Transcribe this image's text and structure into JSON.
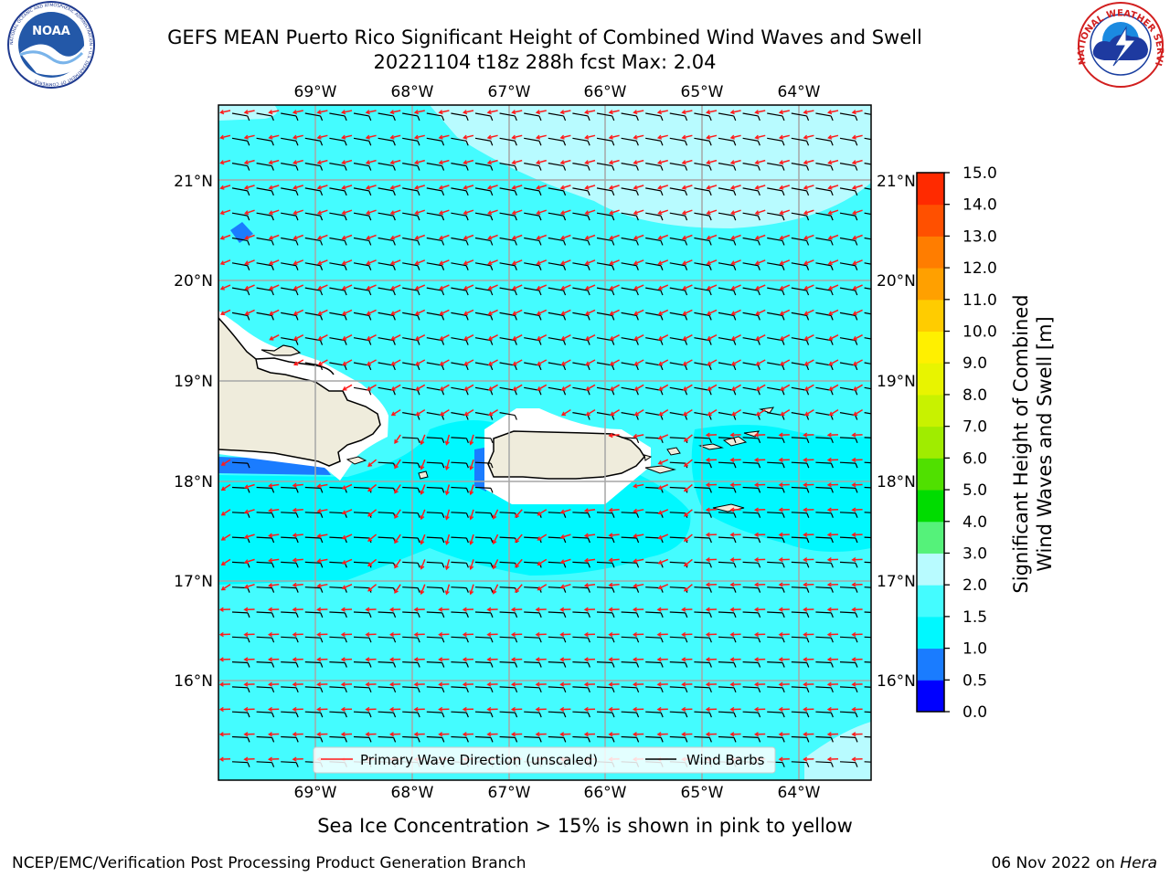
{
  "header": {
    "title_line1": "GEFS MEAN Puerto Rico Significant Height of Combined Wind Waves and Swell",
    "title_line2": "20221104 t18z 288h fcst   Max: 2.04"
  },
  "logos": {
    "noaa_text": "NOAA",
    "noaa_ring_text": "NATIONAL OCEANIC AND ATMOSPHERIC ADMINISTRATION • U.S. DEPARTMENT OF COMMERCE",
    "nws_ring_text": "NATIONAL WEATHER SERVICE"
  },
  "map": {
    "lon_labels": [
      "69°W",
      "68°W",
      "67°W",
      "66°W",
      "65°W",
      "64°W"
    ],
    "lat_labels": [
      "21°N",
      "20°N",
      "19°N",
      "18°N",
      "17°N",
      "16°N"
    ],
    "ocean_colors": {
      "light": "#b8fbff",
      "mid": "#44fcff",
      "deep": "#00f8ff",
      "shallow_blue": "#1a7cff",
      "land": "#efecdc"
    },
    "arrow_color": "#ff1a1a",
    "barb_color": "#000000"
  },
  "legend": {
    "primary_wave_label": "Primary Wave Direction (unscaled)",
    "wind_barbs_label": "Wind Barbs"
  },
  "colorbar": {
    "title_line1": "Significant Height of Combined",
    "title_line2": "Wind Waves and Swell [m]",
    "ticks": [
      "0.0",
      "0.5",
      "1.0",
      "1.5",
      "2.0",
      "3.0",
      "4.0",
      "5.0",
      "6.0",
      "7.0",
      "8.0",
      "9.0",
      "10.0",
      "11.0",
      "12.0",
      "13.0",
      "14.0",
      "15.0"
    ],
    "colors": [
      "#0000ff",
      "#1a7cff",
      "#00f8ff",
      "#44fcff",
      "#b8fbff",
      "#55f27a",
      "#00dc00",
      "#50e000",
      "#a0ec00",
      "#c8f200",
      "#e8f400",
      "#fff000",
      "#ffcc00",
      "#ffa000",
      "#ff7d00",
      "#ff5000",
      "#ff2a00",
      "#ff0000"
    ]
  },
  "footer": {
    "sea_ice_note": "Sea Ice Concentration > 15% is shown in pink to yellow",
    "branch": "NCEP/EMC/Verification Post Processing Product Generation Branch",
    "date_prefix": "06 Nov 2022 on ",
    "machine": "Hera"
  }
}
